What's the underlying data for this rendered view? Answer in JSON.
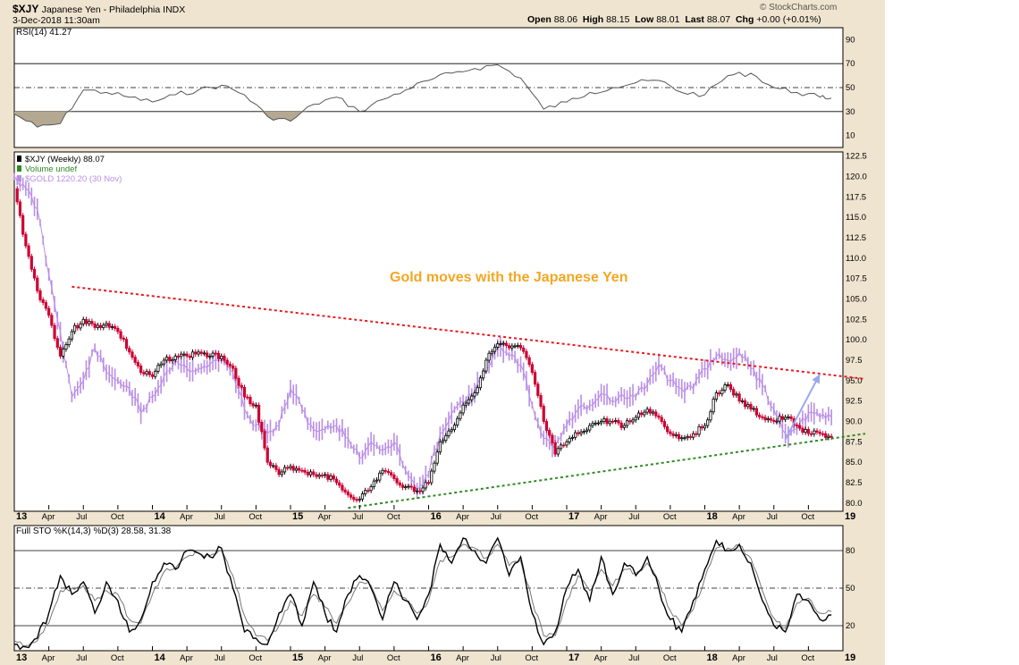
{
  "header": {
    "symbol": "$XJY",
    "name": "Japanese Yen - Philadelphia INDX",
    "date": "3-Dec-2018 11:30am",
    "open_label": "Open",
    "open": "88.06",
    "high_label": "High",
    "high": "88.15",
    "low_label": "Low",
    "low": "88.01",
    "last_label": "Last",
    "last": "88.07",
    "chg_label": "Chg",
    "chg": "+0.00 (+0.01%)",
    "watermark": "© StockCharts.com"
  },
  "annotation": "Gold moves with the Japanese Yen",
  "colors": {
    "background": "#efe4cf",
    "panel": "#ffffff",
    "up_candle": "#000000",
    "down_candle": "#cc0033",
    "gold": "#b98ee6",
    "resistance": "#e8191f",
    "support": "#2e8b22",
    "arrow": "#9aa8f0",
    "annotation": "#f5a623"
  },
  "chart_data": [
    {
      "type": "line",
      "title": "RSI(14) 41.27",
      "y_ticks": [
        90,
        70,
        50,
        30,
        10
      ],
      "ylim": [
        0,
        100
      ],
      "reference_lines": [
        70,
        50,
        30
      ],
      "series": [
        {
          "name": "RSI(14)",
          "x": [
            "2013-01",
            "2013-03",
            "2013-05",
            "2013-07",
            "2013-09",
            "2013-11",
            "2014-01",
            "2014-03",
            "2014-05",
            "2014-07",
            "2014-09",
            "2014-11",
            "2015-01",
            "2015-03",
            "2015-05",
            "2015-07",
            "2015-09",
            "2015-11",
            "2016-01",
            "2016-03",
            "2016-05",
            "2016-07",
            "2016-09",
            "2016-11",
            "2017-01",
            "2017-03",
            "2017-05",
            "2017-07",
            "2017-09",
            "2017-11",
            "2018-01",
            "2018-03",
            "2018-05",
            "2018-07",
            "2018-09",
            "2018-11",
            "2018-12"
          ],
          "values": [
            28,
            17,
            20,
            48,
            46,
            42,
            38,
            44,
            48,
            52,
            44,
            26,
            22,
            36,
            42,
            30,
            40,
            48,
            56,
            62,
            66,
            69,
            58,
            32,
            38,
            46,
            50,
            54,
            56,
            46,
            44,
            60,
            62,
            50,
            46,
            42,
            41.27
          ]
        }
      ]
    },
    {
      "type": "line",
      "title": "$XJY (Weekly) 88.07",
      "legend": [
        {
          "label": "$XJY (Weekly) 88.07",
          "color": "#000000"
        },
        {
          "label": "Volume undef",
          "color": "#2e8b22"
        },
        {
          "label": "$GOLD 1220.20 (30 Nov)",
          "color": "#b98ee6"
        }
      ],
      "y_ticks": [
        122.5,
        120.0,
        117.5,
        115.0,
        112.5,
        110.0,
        107.5,
        105.0,
        102.5,
        100.0,
        97.5,
        95.0,
        92.5,
        90.0,
        87.5,
        85.0,
        82.5,
        80.0
      ],
      "ylim": [
        79,
        123
      ],
      "x_tick_labels": [
        "13",
        "Apr",
        "Jul",
        "Oct",
        "14",
        "Apr",
        "Jul",
        "Oct",
        "15",
        "Apr",
        "Jul",
        "Oct",
        "16",
        "Apr",
        "Jul",
        "Oct",
        "17",
        "Apr",
        "Jul",
        "Oct",
        "18",
        "Apr",
        "Jul",
        "Oct",
        "19"
      ],
      "series": [
        {
          "name": "$XJY",
          "x": [
            "2013-01",
            "2013-02",
            "2013-03",
            "2013-04",
            "2013-05",
            "2013-06",
            "2013-07",
            "2013-08",
            "2013-09",
            "2013-10",
            "2013-11",
            "2013-12",
            "2014-01",
            "2014-02",
            "2014-03",
            "2014-04",
            "2014-05",
            "2014-06",
            "2014-07",
            "2014-08",
            "2014-09",
            "2014-10",
            "2014-11",
            "2014-12",
            "2015-01",
            "2015-02",
            "2015-03",
            "2015-04",
            "2015-05",
            "2015-06",
            "2015-07",
            "2015-08",
            "2015-09",
            "2015-10",
            "2015-11",
            "2015-12",
            "2016-01",
            "2016-02",
            "2016-03",
            "2016-04",
            "2016-05",
            "2016-06",
            "2016-07",
            "2016-08",
            "2016-09",
            "2016-10",
            "2016-11",
            "2016-12",
            "2017-01",
            "2017-02",
            "2017-03",
            "2017-04",
            "2017-05",
            "2017-06",
            "2017-07",
            "2017-08",
            "2017-09",
            "2017-10",
            "2017-11",
            "2017-12",
            "2018-01",
            "2018-02",
            "2018-03",
            "2018-04",
            "2018-05",
            "2018-06",
            "2018-07",
            "2018-08",
            "2018-09",
            "2018-10",
            "2018-11",
            "2018-12"
          ],
          "values": [
            118.5,
            111.5,
            106.0,
            103.0,
            98.0,
            101.0,
            102.5,
            101.5,
            102.0,
            101.0,
            98.5,
            96.0,
            95.5,
            97.5,
            98.0,
            98.0,
            98.5,
            98.0,
            98.0,
            96.5,
            93.0,
            92.0,
            85.0,
            83.5,
            84.5,
            84.0,
            83.5,
            83.5,
            82.5,
            81.0,
            80.5,
            82.0,
            84.0,
            83.0,
            82.0,
            81.5,
            82.5,
            87.5,
            89.0,
            92.0,
            93.5,
            97.5,
            99.5,
            99.0,
            99.0,
            96.0,
            90.0,
            86.0,
            87.5,
            88.5,
            89.5,
            90.0,
            90.0,
            89.5,
            90.5,
            91.5,
            90.5,
            88.5,
            88.0,
            88.5,
            89.5,
            93.5,
            94.5,
            92.5,
            91.5,
            90.5,
            90.0,
            90.5,
            89.5,
            88.5,
            88.5,
            88.07
          ]
        },
        {
          "name": "$GOLD",
          "x": [
            "2013-01",
            "2013-02",
            "2013-03",
            "2013-04",
            "2013-05",
            "2013-06",
            "2013-07",
            "2013-08",
            "2013-09",
            "2013-10",
            "2013-11",
            "2013-12",
            "2014-01",
            "2014-02",
            "2014-03",
            "2014-04",
            "2014-05",
            "2014-06",
            "2014-07",
            "2014-08",
            "2014-09",
            "2014-10",
            "2014-11",
            "2014-12",
            "2015-01",
            "2015-02",
            "2015-03",
            "2015-04",
            "2015-05",
            "2015-06",
            "2015-07",
            "2015-08",
            "2015-09",
            "2015-10",
            "2015-11",
            "2015-12",
            "2016-01",
            "2016-02",
            "2016-03",
            "2016-04",
            "2016-05",
            "2016-06",
            "2016-07",
            "2016-08",
            "2016-09",
            "2016-10",
            "2016-11",
            "2016-12",
            "2017-01",
            "2017-02",
            "2017-03",
            "2017-04",
            "2017-05",
            "2017-06",
            "2017-07",
            "2017-08",
            "2017-09",
            "2017-10",
            "2017-11",
            "2017-12",
            "2018-01",
            "2018-02",
            "2018-03",
            "2018-04",
            "2018-05",
            "2018-06",
            "2018-07",
            "2018-08",
            "2018-09",
            "2018-10",
            "2018-11",
            "2018-12"
          ],
          "values": [
            120.0,
            118.5,
            116.0,
            108.0,
            101.0,
            93.0,
            95.0,
            99.0,
            96.0,
            95.0,
            94.0,
            91.0,
            93.0,
            95.5,
            97.5,
            96.5,
            96.5,
            97.0,
            97.5,
            96.0,
            91.5,
            89.5,
            88.5,
            89.5,
            94.0,
            91.5,
            89.0,
            89.0,
            89.5,
            88.0,
            85.5,
            87.5,
            86.5,
            87.5,
            84.0,
            81.5,
            83.5,
            88.5,
            91.0,
            92.5,
            93.5,
            96.5,
            99.0,
            98.0,
            97.0,
            92.0,
            88.0,
            87.0,
            89.5,
            91.5,
            92.0,
            93.5,
            92.5,
            93.0,
            93.0,
            94.5,
            97.0,
            95.0,
            94.0,
            94.0,
            96.5,
            98.0,
            97.5,
            98.5,
            96.5,
            94.5,
            91.5,
            88.5,
            89.0,
            91.0,
            90.5,
            90.5
          ]
        }
      ],
      "trendlines": [
        {
          "name": "resistance",
          "x": [
            "2013-06",
            "2019-03"
          ],
          "values": [
            106.5,
            95.2
          ],
          "style": "dotted",
          "color": "#e8191f"
        },
        {
          "name": "support",
          "x": [
            "2015-06",
            "2019-03"
          ],
          "values": [
            79.4,
            88.5
          ],
          "style": "dotted",
          "color": "#2e8b22"
        }
      ],
      "arrow": {
        "from": {
          "x": "2018-08",
          "value": 87.8
        },
        "to": {
          "x": "2018-11",
          "value": 95.8
        },
        "color": "#9aa8f0"
      }
    },
    {
      "type": "line",
      "title": "Full STO %K(14,3) %D(3) 28.58, 31.38",
      "y_ticks": [
        80,
        50,
        20
      ],
      "ylim": [
        0,
        100
      ],
      "reference_lines": [
        80,
        50,
        20
      ],
      "series": [
        {
          "name": "%K(14,3)",
          "x": [
            "2013-01",
            "2013-02",
            "2013-03",
            "2013-04",
            "2013-05",
            "2013-06",
            "2013-07",
            "2013-08",
            "2013-09",
            "2013-10",
            "2013-11",
            "2013-12",
            "2014-01",
            "2014-02",
            "2014-03",
            "2014-04",
            "2014-05",
            "2014-06",
            "2014-07",
            "2014-08",
            "2014-09",
            "2014-10",
            "2014-11",
            "2014-12",
            "2015-01",
            "2015-02",
            "2015-03",
            "2015-04",
            "2015-05",
            "2015-06",
            "2015-07",
            "2015-08",
            "2015-09",
            "2015-10",
            "2015-11",
            "2015-12",
            "2016-01",
            "2016-02",
            "2016-03",
            "2016-04",
            "2016-05",
            "2016-06",
            "2016-07",
            "2016-08",
            "2016-09",
            "2016-10",
            "2016-11",
            "2016-12",
            "2017-01",
            "2017-02",
            "2017-03",
            "2017-04",
            "2017-05",
            "2017-06",
            "2017-07",
            "2017-08",
            "2017-09",
            "2017-10",
            "2017-11",
            "2017-12",
            "2018-01",
            "2018-02",
            "2018-03",
            "2018-04",
            "2018-05",
            "2018-06",
            "2018-07",
            "2018-08",
            "2018-09",
            "2018-10",
            "2018-11",
            "2018-12"
          ],
          "values": [
            5,
            3,
            10,
            30,
            60,
            45,
            55,
            30,
            55,
            40,
            15,
            25,
            55,
            70,
            65,
            80,
            78,
            75,
            82,
            50,
            15,
            10,
            5,
            30,
            45,
            20,
            55,
            30,
            15,
            45,
            60,
            50,
            25,
            55,
            40,
            25,
            45,
            85,
            70,
            90,
            80,
            70,
            90,
            60,
            75,
            30,
            5,
            15,
            50,
            65,
            40,
            75,
            45,
            70,
            60,
            75,
            50,
            25,
            15,
            40,
            65,
            88,
            80,
            85,
            70,
            40,
            20,
            15,
            45,
            40,
            25,
            28.58
          ]
        },
        {
          "name": "%D(3)",
          "x": [
            "2013-01",
            "2013-02",
            "2013-03",
            "2013-04",
            "2013-05",
            "2013-06",
            "2013-07",
            "2013-08",
            "2013-09",
            "2013-10",
            "2013-11",
            "2013-12",
            "2014-01",
            "2014-02",
            "2014-03",
            "2014-04",
            "2014-05",
            "2014-06",
            "2014-07",
            "2014-08",
            "2014-09",
            "2014-10",
            "2014-11",
            "2014-12",
            "2015-01",
            "2015-02",
            "2015-03",
            "2015-04",
            "2015-05",
            "2015-06",
            "2015-07",
            "2015-08",
            "2015-09",
            "2015-10",
            "2015-11",
            "2015-12",
            "2016-01",
            "2016-02",
            "2016-03",
            "2016-04",
            "2016-05",
            "2016-06",
            "2016-07",
            "2016-08",
            "2016-09",
            "2016-10",
            "2016-11",
            "2016-12",
            "2017-01",
            "2017-02",
            "2017-03",
            "2017-04",
            "2017-05",
            "2017-06",
            "2017-07",
            "2017-08",
            "2017-09",
            "2017-10",
            "2017-11",
            "2017-12",
            "2018-01",
            "2018-02",
            "2018-03",
            "2018-04",
            "2018-05",
            "2018-06",
            "2018-07",
            "2018-08",
            "2018-09",
            "2018-10",
            "2018-11",
            "2018-12"
          ],
          "values": [
            8,
            4,
            8,
            22,
            48,
            50,
            52,
            40,
            48,
            45,
            25,
            22,
            45,
            63,
            66,
            75,
            78,
            76,
            80,
            60,
            28,
            12,
            8,
            20,
            40,
            28,
            45,
            35,
            22,
            38,
            55,
            52,
            32,
            48,
            42,
            30,
            40,
            72,
            75,
            85,
            82,
            74,
            85,
            68,
            72,
            40,
            12,
            12,
            40,
            60,
            48,
            65,
            52,
            65,
            62,
            70,
            55,
            32,
            20,
            33,
            58,
            82,
            82,
            84,
            74,
            48,
            26,
            18,
            38,
            42,
            30,
            31.38
          ]
        }
      ]
    }
  ]
}
